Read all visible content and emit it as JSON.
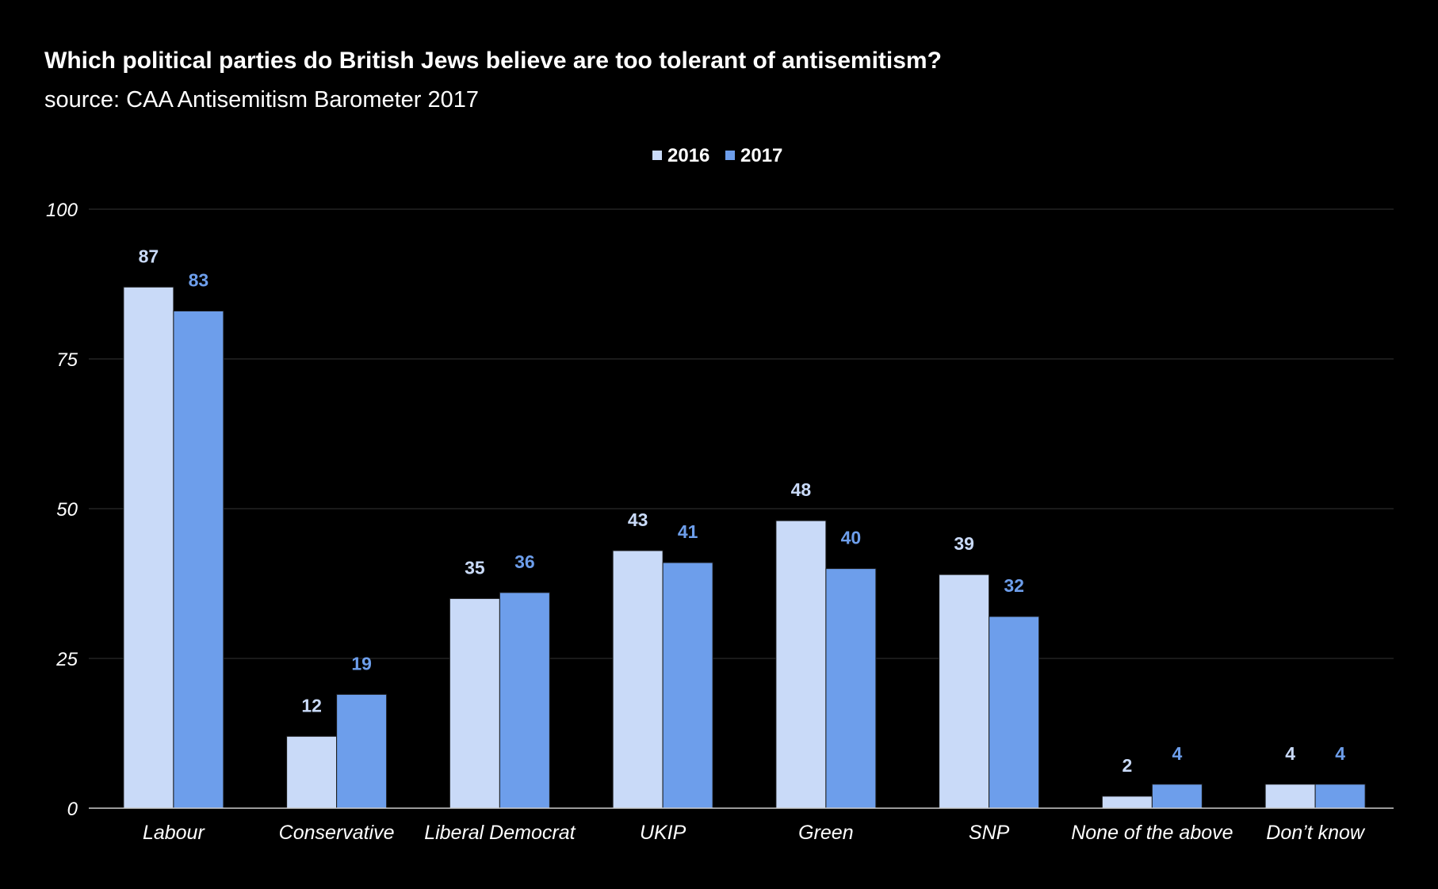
{
  "chart_data": {
    "type": "bar",
    "title": "Which political parties do British Jews believe are too tolerant of antisemitism?",
    "subtitle": "source: CAA Antisemitism Barometer 2017",
    "xlabel": "",
    "ylabel": "",
    "ylim": [
      0,
      100
    ],
    "yticks": [
      0,
      25,
      50,
      75,
      100
    ],
    "grid": true,
    "legend_position": "top-center",
    "categories": [
      "Labour",
      "Conservative",
      "Liberal Democrat",
      "UKIP",
      "Green",
      "SNP",
      "None of the above",
      "Don’t know"
    ],
    "series": [
      {
        "name": "2016",
        "color": "#c9daf8",
        "label_color": "#c9daf8",
        "values": [
          87,
          12,
          35,
          43,
          48,
          39,
          2,
          4
        ]
      },
      {
        "name": "2017",
        "color": "#6d9eeb",
        "label_color": "#6d9eeb",
        "values": [
          83,
          19,
          36,
          41,
          40,
          32,
          4,
          4
        ]
      }
    ]
  }
}
